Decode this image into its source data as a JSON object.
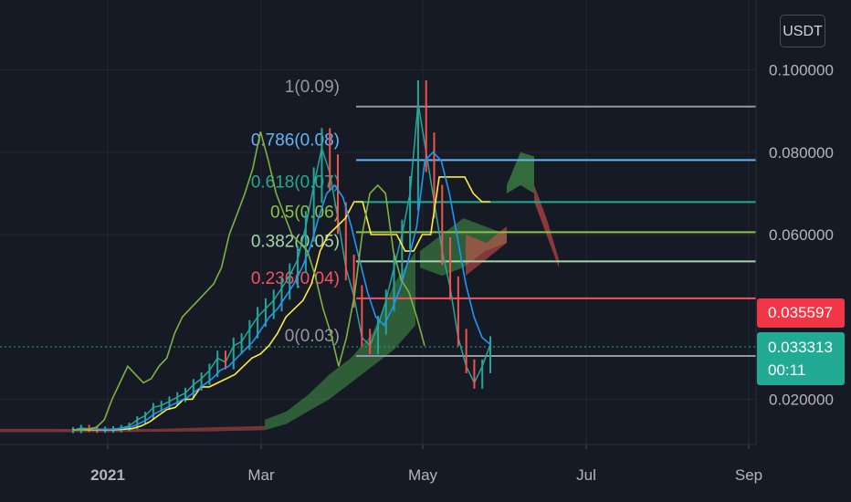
{
  "currency": "USDT",
  "price_tags": {
    "red": {
      "value": "0.035597",
      "color": "#f23645"
    },
    "green": {
      "value": "0.033313",
      "countdown": "00:11",
      "color": "#22ab94"
    }
  },
  "chart_data": {
    "type": "line",
    "y_axis": {
      "ticks": [
        "0.100000",
        "0.080000",
        "0.060000",
        "0.020000"
      ],
      "tick_values": [
        0.1,
        0.08,
        0.06,
        0.02
      ],
      "range": [
        0.009,
        0.117
      ],
      "position": "right"
    },
    "x_axis": {
      "ticks": [
        "2021",
        "Mar",
        "May",
        "Jul",
        "Sep"
      ]
    },
    "grid": true,
    "fib_levels": [
      {
        "ratio": "1",
        "value": "0.09",
        "label": "1(0.09)",
        "price": 0.0911,
        "color": "#9598a1"
      },
      {
        "ratio": "0.786",
        "value": "0.08",
        "label": "0.786(0.08)",
        "price": 0.0781,
        "color": "#64b5f6"
      },
      {
        "ratio": "0.618",
        "value": "0.07",
        "label": "0.618(0.07)",
        "price": 0.0679,
        "color": "#22ab94"
      },
      {
        "ratio": "0.5",
        "value": "0.06",
        "label": "0.5(0.06)",
        "price": 0.0606,
        "color": "#8bc34a"
      },
      {
        "ratio": "0.382",
        "value": "0.05",
        "label": "0.382(0.05)",
        "price": 0.0535,
        "color": "#a5d6a7"
      },
      {
        "ratio": "0.236",
        "value": "0.04",
        "label": "0.236(0.04)",
        "price": 0.0445,
        "color": "#f7525f"
      },
      {
        "ratio": "0",
        "value": "0.03",
        "label": "0(0.03)",
        "price": 0.0305,
        "color": "#9598a1"
      }
    ],
    "series": [
      {
        "kind": "price",
        "color": "#26a69a",
        "values": [
          0.0125,
          0.013,
          0.0128,
          0.0126,
          0.0126,
          0.0127,
          0.013,
          0.0135,
          0.015,
          0.016,
          0.018,
          0.0185,
          0.0195,
          0.0205,
          0.0215,
          0.0235,
          0.025,
          0.027,
          0.03,
          0.029,
          0.033,
          0.034,
          0.037,
          0.04,
          0.042,
          0.044,
          0.047,
          0.05,
          0.054,
          0.062,
          0.072,
          0.081,
          0.075,
          0.064,
          0.052,
          0.045,
          0.035,
          0.033,
          0.038,
          0.044,
          0.052,
          0.06,
          0.07,
          0.092,
          0.08,
          0.068,
          0.056,
          0.047,
          0.035,
          0.028,
          0.024,
          0.028,
          0.0333
        ]
      },
      {
        "kind": "base-line",
        "color": "#ffeb3b",
        "values": [
          0.0126,
          0.0126,
          0.0126,
          0.0126,
          0.0126,
          0.0126,
          0.0127,
          0.0129,
          0.0135,
          0.0145,
          0.016,
          0.0175,
          0.018,
          0.02,
          0.02,
          0.023,
          0.023,
          0.024,
          0.025,
          0.026,
          0.028,
          0.03,
          0.031,
          0.033,
          0.036,
          0.04,
          0.042,
          0.044,
          0.048,
          0.056,
          0.06,
          0.062,
          0.064,
          0.068,
          0.068,
          0.06,
          0.06,
          0.06,
          0.06,
          0.056,
          0.056,
          0.06,
          0.06,
          0.074,
          0.074,
          0.074,
          0.074,
          0.07,
          0.068,
          0.068
        ]
      },
      {
        "kind": "conversion-line",
        "color": "#2196f3",
        "values": [
          0.0125,
          0.0128,
          0.0128,
          0.0127,
          0.0127,
          0.0127,
          0.0129,
          0.0132,
          0.014,
          0.015,
          0.0165,
          0.0175,
          0.0185,
          0.0195,
          0.0205,
          0.022,
          0.0235,
          0.025,
          0.027,
          0.028,
          0.03,
          0.032,
          0.034,
          0.037,
          0.04,
          0.042,
          0.045,
          0.048,
          0.052,
          0.057,
          0.064,
          0.07,
          0.072,
          0.069,
          0.062,
          0.054,
          0.046,
          0.04,
          0.038,
          0.042,
          0.047,
          0.054,
          0.062,
          0.078,
          0.08,
          0.078,
          0.07,
          0.059,
          0.048,
          0.04,
          0.035,
          0.0333
        ]
      },
      {
        "kind": "lagging-span",
        "color": "#7cb342",
        "values": [
          0.0125,
          0.0126,
          0.0128,
          0.0132,
          0.015,
          0.02,
          0.024,
          0.028,
          0.026,
          0.024,
          0.025,
          0.028,
          0.03,
          0.036,
          0.04,
          0.042,
          0.044,
          0.046,
          0.048,
          0.052,
          0.06,
          0.065,
          0.07,
          0.076,
          0.085,
          0.078,
          0.07,
          0.065,
          0.06,
          0.058,
          0.056,
          0.05,
          0.042,
          0.036,
          0.028,
          0.035,
          0.045,
          0.06,
          0.07,
          0.072,
          0.07,
          0.056,
          0.049,
          0.046,
          0.04,
          0.033
        ]
      }
    ]
  }
}
